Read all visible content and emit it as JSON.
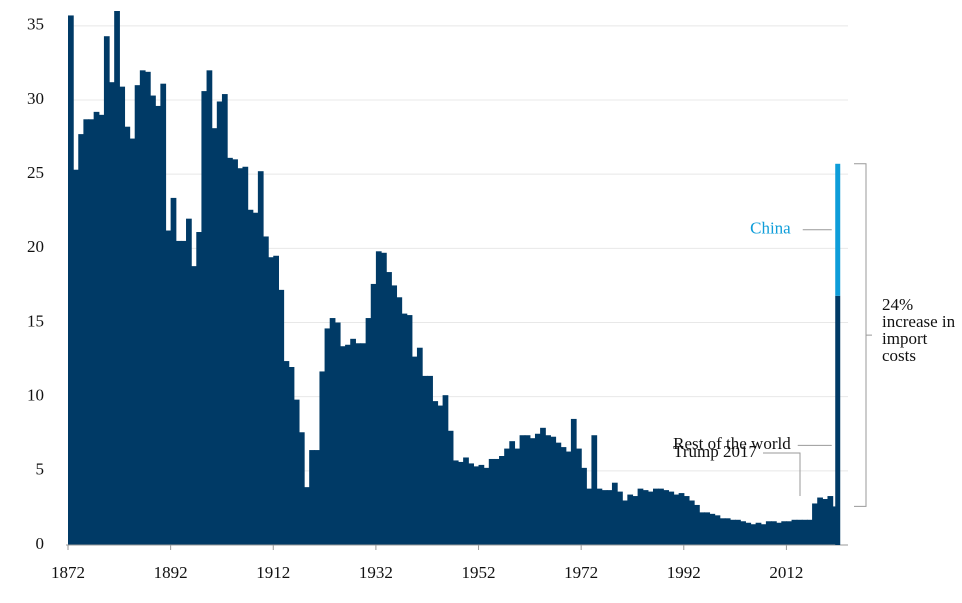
{
  "chart_data": {
    "type": "area",
    "x": [
      1872,
      1873,
      1874,
      1875,
      1876,
      1877,
      1878,
      1879,
      1880,
      1881,
      1882,
      1883,
      1884,
      1885,
      1886,
      1887,
      1888,
      1889,
      1890,
      1891,
      1892,
      1893,
      1894,
      1895,
      1896,
      1897,
      1898,
      1899,
      1900,
      1901,
      1902,
      1903,
      1904,
      1905,
      1906,
      1907,
      1908,
      1909,
      1910,
      1911,
      1912,
      1913,
      1914,
      1915,
      1916,
      1917,
      1918,
      1919,
      1920,
      1921,
      1922,
      1923,
      1924,
      1925,
      1926,
      1927,
      1928,
      1929,
      1930,
      1931,
      1932,
      1933,
      1934,
      1935,
      1936,
      1937,
      1938,
      1939,
      1940,
      1941,
      1942,
      1943,
      1944,
      1945,
      1946,
      1947,
      1948,
      1949,
      1950,
      1951,
      1952,
      1953,
      1954,
      1955,
      1956,
      1957,
      1958,
      1959,
      1960,
      1961,
      1962,
      1963,
      1964,
      1965,
      1966,
      1967,
      1968,
      1969,
      1970,
      1971,
      1972,
      1973,
      1974,
      1975,
      1976,
      1977,
      1978,
      1979,
      1980,
      1981,
      1982,
      1983,
      1984,
      1985,
      1986,
      1987,
      1988,
      1989,
      1990,
      1991,
      1992,
      1993,
      1994,
      1995,
      1996,
      1997,
      1998,
      1999,
      2000,
      2001,
      2002,
      2003,
      2004,
      2005,
      2006,
      2007,
      2008,
      2009,
      2010,
      2011,
      2012,
      2013,
      2014,
      2015,
      2016,
      2017,
      2018,
      2019,
      2020,
      2021
    ],
    "values": [
      35.7,
      25.3,
      27.7,
      28.7,
      28.7,
      29.2,
      29.0,
      34.3,
      31.2,
      36.0,
      30.9,
      28.2,
      27.4,
      31.0,
      32.0,
      31.9,
      30.3,
      29.6,
      31.1,
      21.2,
      23.4,
      20.5,
      20.5,
      22.0,
      18.8,
      21.1,
      30.6,
      32.0,
      28.1,
      29.9,
      30.4,
      26.1,
      26.0,
      25.4,
      25.5,
      22.6,
      22.4,
      25.2,
      20.8,
      19.4,
      19.5,
      17.2,
      12.4,
      12.0,
      9.8,
      7.6,
      3.9,
      6.4,
      6.4,
      11.7,
      14.6,
      15.3,
      15.0,
      13.4,
      13.5,
      13.9,
      13.6,
      13.6,
      15.3,
      17.6,
      19.8,
      19.7,
      18.4,
      17.5,
      16.7,
      15.6,
      15.5,
      12.7,
      13.3,
      11.4,
      11.4,
      9.7,
      9.4,
      10.1,
      7.7,
      5.7,
      5.6,
      5.9,
      5.5,
      5.3,
      5.4,
      5.2,
      5.8,
      5.8,
      6.0,
      6.5,
      7.0,
      6.5,
      7.4,
      7.4,
      7.2,
      7.5,
      7.9,
      7.4,
      7.3,
      6.9,
      6.6,
      6.3,
      8.5,
      6.5,
      5.2,
      3.8,
      7.4,
      3.8,
      3.7,
      3.7,
      4.2,
      3.6,
      3.0,
      3.4,
      3.3,
      3.8,
      3.7,
      3.6,
      3.8,
      3.8,
      3.7,
      3.6,
      3.4,
      3.5,
      3.3,
      3.0,
      2.7,
      2.2,
      2.2,
      2.1,
      2.0,
      1.8,
      1.8,
      1.7,
      1.7,
      1.6,
      1.5,
      1.4,
      1.5,
      1.4,
      1.6,
      1.6,
      1.5,
      1.6,
      1.6,
      1.7,
      1.7,
      1.7,
      1.7,
      2.8,
      3.2,
      3.1,
      3.3,
      2.6
    ],
    "color": "#003a66",
    "stack": {
      "x": 2022,
      "series": [
        {
          "name": "Rest of the world",
          "color": "#003a66",
          "value": 16.8
        },
        {
          "name": "China",
          "color": "#0e9dd9",
          "value": 8.9
        }
      ]
    },
    "annotations": [
      "Trump 2017",
      "24% increase in import costs"
    ],
    "xlim": [
      1872,
      2024
    ],
    "xticks": [
      1872,
      1892,
      1912,
      1932,
      1952,
      1972,
      1992,
      2012
    ],
    "ylim": [
      0,
      36
    ],
    "yticks": [
      0,
      5,
      10,
      15,
      20,
      25,
      30,
      35
    ],
    "grid": true
  }
}
